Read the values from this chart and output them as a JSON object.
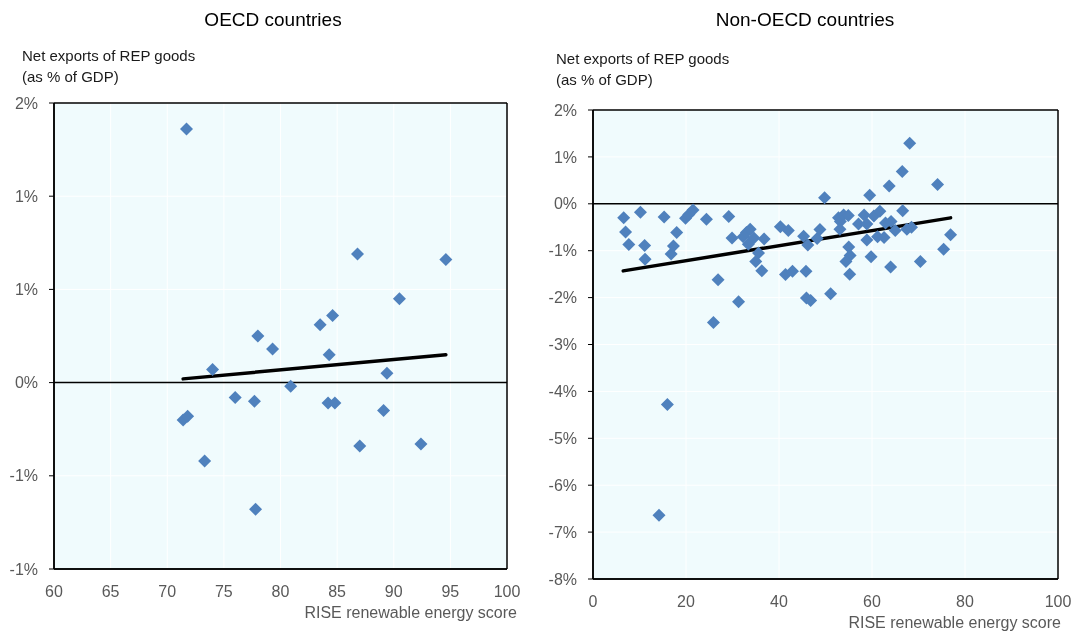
{
  "chart_data": [
    {
      "type": "scatter",
      "title": "OECD countries",
      "ylabel": "Net exports of REP goods\n(as % of GDP)",
      "xlabel": "RISE renewable energy score",
      "xlim": [
        60,
        100
      ],
      "xticks": [
        60,
        65,
        70,
        75,
        80,
        85,
        90,
        95,
        100
      ],
      "ylim": [
        -1,
        1.5
      ],
      "yticks": [
        {
          "value": -1,
          "label": "-1%"
        },
        {
          "value": -0.5,
          "label": "-1%"
        },
        {
          "value": 0,
          "label": "0%"
        },
        {
          "value": 0.5,
          "label": "1%"
        },
        {
          "value": 1,
          "label": "1%"
        },
        {
          "value": 1.5,
          "label": "2%"
        }
      ],
      "grid": true,
      "marker": "diamond",
      "ref_lines": [
        {
          "axis": "y",
          "value": 0,
          "color": "#000000"
        }
      ],
      "series": [
        {
          "type": "scatter",
          "color": "#4f81bd",
          "x": [
            71.7,
            86.8,
            94.6,
            90.5,
            84.6,
            83.5,
            78.0,
            79.3,
            84.3,
            74.0,
            89.4,
            80.9,
            76.0,
            77.7,
            84.2,
            84.8,
            89.1,
            71.4,
            71.8,
            87.0,
            92.4,
            73.3,
            77.8
          ],
          "values": [
            1.36,
            0.69,
            0.66,
            0.45,
            0.36,
            0.31,
            0.25,
            0.18,
            0.15,
            0.07,
            0.05,
            -0.02,
            -0.08,
            -0.1,
            -0.11,
            -0.11,
            -0.15,
            -0.2,
            -0.18,
            -0.34,
            -0.33,
            -0.42,
            -0.68
          ]
        },
        {
          "type": "line",
          "color": "#000000",
          "marker": "none",
          "x": [
            71.4,
            94.6
          ],
          "values": [
            0.02,
            0.15
          ]
        }
      ]
    },
    {
      "type": "scatter",
      "title": "Non-OECD countries",
      "ylabel": "Net exports of REP goods\n(as % of GDP)",
      "xlabel": "RISE renewable energy score",
      "xlim": [
        0,
        100
      ],
      "xticks": [
        0,
        20,
        40,
        60,
        80,
        100
      ],
      "ylim": [
        -8,
        2
      ],
      "yticks": [
        {
          "value": -8,
          "label": "-8%"
        },
        {
          "value": -7,
          "label": "-7%"
        },
        {
          "value": -6,
          "label": "-6%"
        },
        {
          "value": -5,
          "label": "-5%"
        },
        {
          "value": -4,
          "label": "-4%"
        },
        {
          "value": -3,
          "label": "-3%"
        },
        {
          "value": -2,
          "label": "-2%"
        },
        {
          "value": -1,
          "label": "-1%"
        },
        {
          "value": 0,
          "label": "0%"
        },
        {
          "value": 1,
          "label": "1%"
        },
        {
          "value": 2,
          "label": "2%"
        }
      ],
      "grid": true,
      "marker": "diamond",
      "ref_lines": [
        {
          "axis": "y",
          "value": 0,
          "color": "#000000"
        }
      ],
      "series": [
        {
          "type": "scatter",
          "color": "#4f81bd",
          "x": [
            6.6,
            7.0,
            7.7,
            10.2,
            11.1,
            11.2,
            15.3,
            16.8,
            17.3,
            18.0,
            19.9,
            20.6,
            21.5,
            24.4,
            25.9,
            26.9,
            29.2,
            29.9,
            31.3,
            14.2,
            16.0,
            32.3,
            33.0,
            33.8,
            34.6,
            33.4,
            36.8,
            35.6,
            35.0,
            36.3,
            40.3,
            42.0,
            41.4,
            42.9,
            45.3,
            46.2,
            45.8,
            45.9,
            46.8,
            48.2,
            48.8,
            49.8,
            51.1,
            52.8,
            53.2,
            53.1,
            53.9,
            54.9,
            55.0,
            55.3,
            54.4,
            55.2,
            57.1,
            58.3,
            58.9,
            58.9,
            59.5,
            59.8,
            60.4,
            61.2,
            61.7,
            62.6,
            62.9,
            63.7,
            64.1,
            64.0,
            65.0,
            66.5,
            66.6,
            67.5,
            68.1,
            68.5,
            70.4,
            74.1,
            75.4,
            76.9
          ],
          "values": [
            -0.3,
            -0.6,
            -0.87,
            -0.18,
            -0.89,
            -1.18,
            -0.28,
            -1.07,
            -0.9,
            -0.61,
            -0.31,
            -0.23,
            -0.13,
            -0.33,
            -2.53,
            -1.62,
            -0.27,
            -0.73,
            -2.09,
            -6.64,
            -4.28,
            -0.7,
            -0.61,
            -0.54,
            -0.73,
            -0.86,
            -0.75,
            -1.05,
            -1.23,
            -1.43,
            -0.49,
            -0.57,
            -1.51,
            -1.44,
            -0.69,
            -0.88,
            -1.44,
            -2.01,
            -2.06,
            -0.74,
            -0.55,
            0.13,
            -1.92,
            -0.3,
            -0.38,
            -0.54,
            -0.24,
            -0.25,
            -0.92,
            -1.1,
            -1.23,
            -1.5,
            -0.43,
            -0.24,
            -0.43,
            -0.77,
            0.18,
            -1.13,
            -0.26,
            -0.7,
            -0.16,
            -0.72,
            -0.41,
            0.38,
            -0.38,
            -1.35,
            -0.57,
            0.69,
            -0.15,
            -0.54,
            1.29,
            -0.5,
            -1.23,
            0.41,
            -0.97,
            -0.66
          ]
        },
        {
          "type": "line",
          "color": "#000000",
          "marker": "none",
          "x": [
            6.5,
            76.9
          ],
          "values": [
            -1.43,
            -0.3
          ]
        }
      ]
    }
  ]
}
